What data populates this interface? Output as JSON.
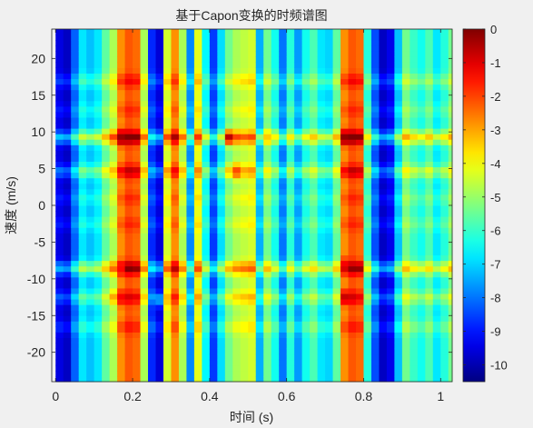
{
  "chart_data": {
    "type": "heatmap",
    "title": "基于Capon变换的时频谱图",
    "xlabel": "时间 (s)",
    "ylabel": "速度 (m/s)",
    "xlim": [
      -0.01,
      1.03
    ],
    "ylim": [
      -24,
      24
    ],
    "xticks": [
      0,
      0.2,
      0.4,
      0.6,
      0.8,
      1
    ],
    "xtick_labels": [
      "0",
      "0.2",
      "0.4",
      "0.6",
      "0.8",
      "1"
    ],
    "yticks": [
      20,
      15,
      10,
      5,
      0,
      -5,
      -10,
      -15,
      -20
    ],
    "ytick_labels": [
      "20",
      "15",
      "10",
      "5",
      "0",
      "-5",
      "-10",
      "-15",
      "-20"
    ],
    "colorbar": {
      "range": [
        -10.5,
        0
      ],
      "ticks": [
        0,
        -1,
        -2,
        -3,
        -4,
        -5,
        -6,
        -7,
        -8,
        -9,
        -10
      ],
      "tick_labels": [
        "0",
        "-1",
        "-2",
        "-3",
        "-4",
        "-5",
        "-6",
        "-7",
        "-8",
        "-9",
        "-10"
      ],
      "colormap": "jet"
    },
    "grid": false,
    "column_time_step": 0.02,
    "column_levels_db": [
      -9.5,
      -9.8,
      -8.2,
      -6.8,
      -7.2,
      -6.8,
      -5.6,
      -4.8,
      -2.8,
      -2.2,
      -2.4,
      -4.8,
      -8.8,
      -9.6,
      -4.4,
      -2.8,
      -4.8,
      -7.8,
      -4.2,
      -6.6,
      -8.6,
      -6.9,
      -5.4,
      -4.8,
      -4.6,
      -4.4,
      -7.4,
      -5.4,
      -6.4,
      -8.0,
      -6.2,
      -7.6,
      -6.4,
      -5.8,
      -6.8,
      -7.0,
      -5.6,
      -2.8,
      -2.2,
      -2.4,
      -6.2,
      -8.4,
      -9.8,
      -9.4,
      -7.2,
      -5.4,
      -6.0,
      -6.4,
      -5.8,
      -6.8,
      -6.2,
      -5.4
    ],
    "row_peaks": [
      {
        "velocity": 17,
        "boost_db": 1.0
      },
      {
        "velocity": 13,
        "boost_db": 0.6
      },
      {
        "velocity": 9.3,
        "boost_db": 2.4
      },
      {
        "velocity": 4.7,
        "boost_db": 1.6
      },
      {
        "velocity": 1.0,
        "boost_db": 0.6
      },
      {
        "velocity": -2.5,
        "boost_db": 0.6
      },
      {
        "velocity": -8.5,
        "boost_db": 2.2
      },
      {
        "velocity": -12.5,
        "boost_db": 1.3
      },
      {
        "velocity": -16.5,
        "boost_db": 0.8
      }
    ],
    "hotspots": [
      {
        "time": 0.165,
        "velocity": 9.3,
        "value_db": -0.2
      },
      {
        "time": 0.165,
        "velocity": -8.5,
        "value_db": -1.5
      },
      {
        "time": 0.165,
        "velocity": -12.5,
        "value_db": -1.2
      },
      {
        "time": 0.455,
        "velocity": 9.3,
        "value_db": -0.2
      },
      {
        "time": 0.465,
        "velocity": 4.7,
        "value_db": -1.8
      },
      {
        "time": 0.755,
        "velocity": 9.3,
        "value_db": -0.1
      },
      {
        "time": 0.755,
        "velocity": -8.0,
        "value_db": -1.2
      },
      {
        "time": 0.755,
        "velocity": -12.5,
        "value_db": -0.6
      },
      {
        "time": 0.555,
        "velocity": 9.3,
        "value_db": -3.5
      },
      {
        "time": 0.285,
        "velocity": -13.0,
        "value_db": -3.4
      }
    ]
  }
}
